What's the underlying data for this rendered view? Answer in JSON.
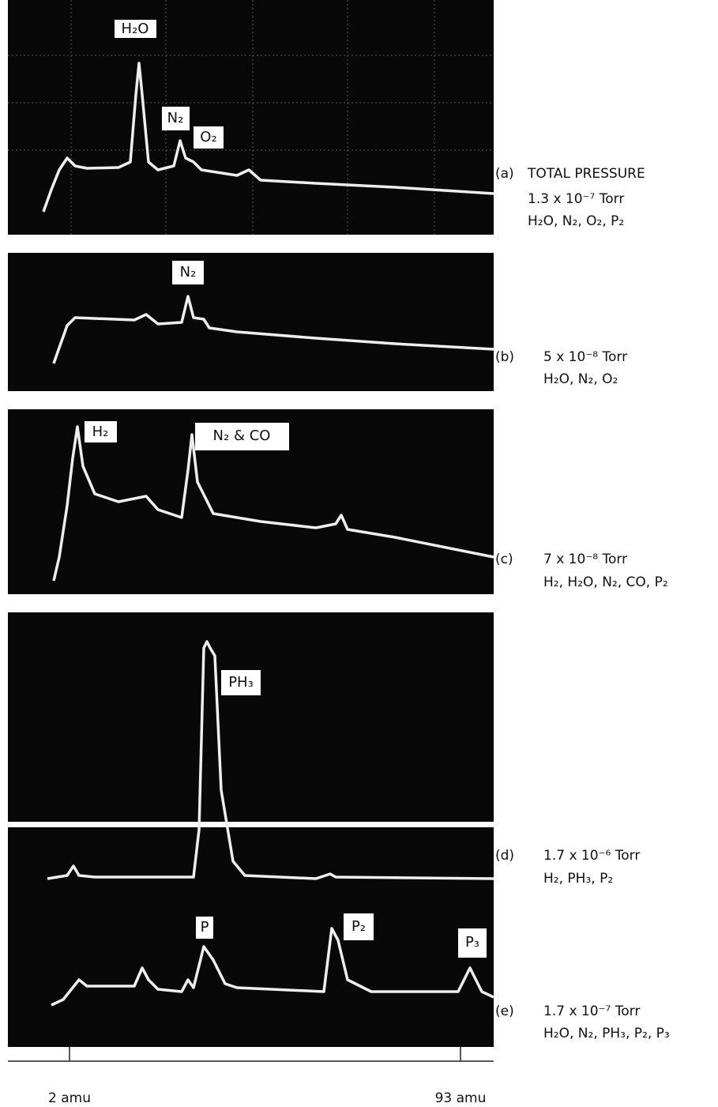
{
  "panels": [
    {
      "label": "(a)",
      "title": "TOTAL PRESSURE",
      "pressure": "1.3 x 10⁻⁷ Torr",
      "gases": "H₂O, N₂, O₂, P₂",
      "peak_labels": [
        "H₂O",
        "N₂",
        "O₂"
      ]
    },
    {
      "label": "(b)",
      "pressure": "5 x 10⁻⁸ Torr",
      "gases": "H₂O, N₂, O₂",
      "peak_labels": [
        "N₂"
      ]
    },
    {
      "label": "(c)",
      "pressure": "7 x 10⁻⁸ Torr",
      "gases": "H₂, H₂O, N₂, CO, P₂",
      "peak_labels": [
        "H₂",
        "N₂ & CO"
      ]
    },
    {
      "label": "(d)",
      "pressure": "1.7 x 10⁻⁶ Torr",
      "gases": "H₂, PH₃, P₂",
      "peak_labels": [
        "PH₃"
      ]
    },
    {
      "label": "(e)",
      "pressure": "1.7 x 10⁻⁷ Torr",
      "gases": "H₂O, N₂, PH₃, P₂, P₃",
      "peak_labels": [
        "P",
        "P₂",
        "P₃"
      ]
    }
  ],
  "axis": {
    "left": "2 amu",
    "right": "93 amu"
  }
}
